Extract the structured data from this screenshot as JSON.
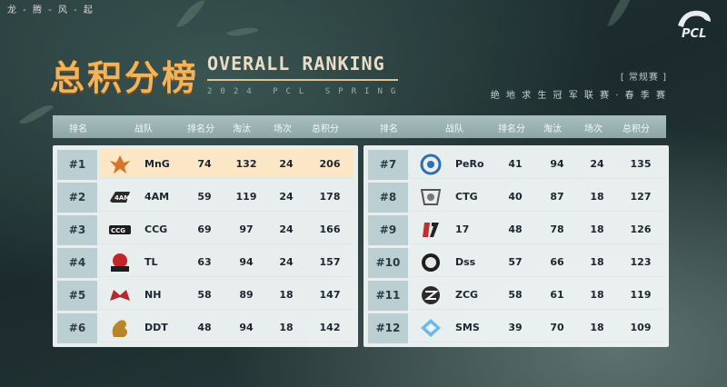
{
  "slogan": "龙 - 腾 - 风 - 起",
  "brand_text": "PCL",
  "title_cn": "总积分榜",
  "title_en": "OVERALL RANKING",
  "title_sub": "2024 PCL SPRING",
  "tag": "[ 常规赛 ]",
  "series": "绝 地 求 生 冠 军 联 赛 · 春 季 赛",
  "headers": {
    "rank": "排名",
    "team": "战队",
    "place": "排名分",
    "elim": "淘汰",
    "matches": "场次",
    "total": "总积分"
  },
  "colors": {
    "accent": "#f3b35a",
    "highlight_row": "#fbe6c6"
  },
  "left": [
    {
      "rank": "#1",
      "team": "MnG",
      "place": "74",
      "elim": "132",
      "matches": "24",
      "total": "206",
      "logo": "phoenix-icon"
    },
    {
      "rank": "#2",
      "team": "4AM",
      "place": "59",
      "elim": "119",
      "matches": "24",
      "total": "178",
      "logo": "4am-logo-icon"
    },
    {
      "rank": "#3",
      "team": "CCG",
      "place": "69",
      "elim": "97",
      "matches": "24",
      "total": "166",
      "logo": "ccg-logo-icon"
    },
    {
      "rank": "#4",
      "team": "TL",
      "place": "63",
      "elim": "94",
      "matches": "24",
      "total": "157",
      "logo": "tl-logo-icon"
    },
    {
      "rank": "#5",
      "team": "NH",
      "place": "58",
      "elim": "89",
      "matches": "18",
      "total": "147",
      "logo": "nh-logo-icon"
    },
    {
      "rank": "#6",
      "team": "DDT",
      "place": "48",
      "elim": "94",
      "matches": "18",
      "total": "142",
      "logo": "dragon-icon"
    }
  ],
  "right": [
    {
      "rank": "#7",
      "team": "PeRo",
      "place": "41",
      "elim": "94",
      "matches": "24",
      "total": "135",
      "logo": "pero-logo-icon"
    },
    {
      "rank": "#8",
      "team": "CTG",
      "place": "40",
      "elim": "87",
      "matches": "18",
      "total": "127",
      "logo": "ctg-logo-icon"
    },
    {
      "rank": "#9",
      "team": "17",
      "place": "48",
      "elim": "78",
      "matches": "18",
      "total": "126",
      "logo": "17-logo-icon"
    },
    {
      "rank": "#10",
      "team": "Dss",
      "place": "57",
      "elim": "66",
      "matches": "18",
      "total": "123",
      "logo": "dss-logo-icon"
    },
    {
      "rank": "#11",
      "team": "ZCG",
      "place": "58",
      "elim": "61",
      "matches": "18",
      "total": "119",
      "logo": "zcg-logo-icon"
    },
    {
      "rank": "#12",
      "team": "SMS",
      "place": "39",
      "elim": "70",
      "matches": "18",
      "total": "109",
      "logo": "sms-logo-icon"
    }
  ]
}
